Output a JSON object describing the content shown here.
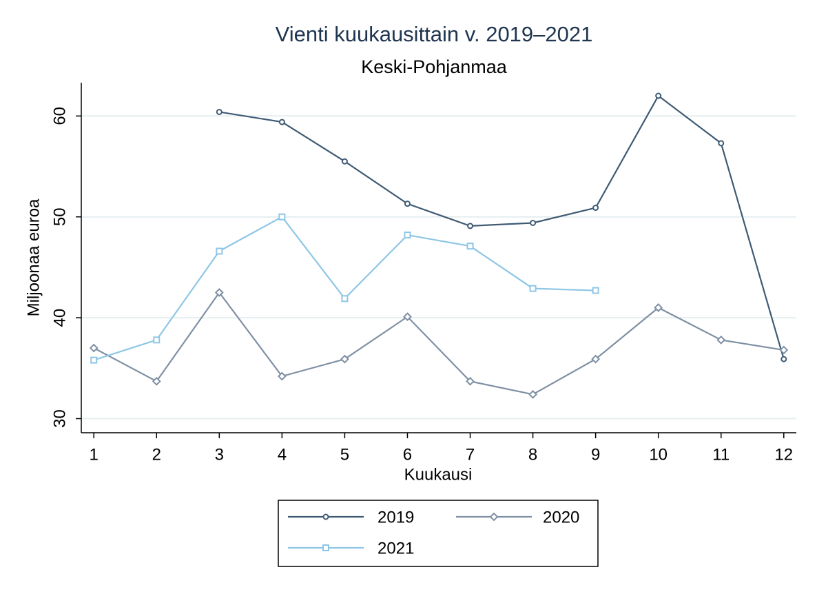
{
  "chart_data": {
    "type": "line",
    "title": "Vienti kuukausittain v. 2019–2021",
    "subtitle": "Keski-Pohjanmaa",
    "x_label": "Kuukausi",
    "y_label": "Miljoonaa euroa",
    "x": [
      1,
      2,
      3,
      4,
      5,
      6,
      7,
      8,
      9,
      10,
      11,
      12
    ],
    "series": [
      {
        "name": "2019",
        "color": "#3f5a73",
        "marker": "circle",
        "values": [
          null,
          null,
          60.4,
          59.4,
          55.5,
          51.3,
          49.1,
          49.4,
          50.9,
          62.0,
          57.3,
          35.9
        ]
      },
      {
        "name": "2020",
        "color": "#7f90a4",
        "marker": "diamond",
        "values": [
          37.0,
          33.7,
          42.5,
          34.2,
          35.9,
          40.1,
          33.7,
          32.4,
          35.9,
          41.0,
          37.8,
          36.8
        ]
      },
      {
        "name": "2021",
        "color": "#8ec6e6",
        "marker": "square",
        "values": [
          35.8,
          37.8,
          46.6,
          50.0,
          41.9,
          48.2,
          47.1,
          42.9,
          42.7,
          null,
          null,
          null
        ]
      }
    ],
    "xlim": [
      0.8,
      12.2
    ],
    "xticks": [
      1,
      2,
      3,
      4,
      5,
      6,
      7,
      8,
      9,
      10,
      11,
      12
    ],
    "ylim": [
      28.6,
      63.3
    ],
    "yticks": [
      30,
      40,
      50,
      60
    ],
    "grid": true,
    "legend": "bottom"
  }
}
